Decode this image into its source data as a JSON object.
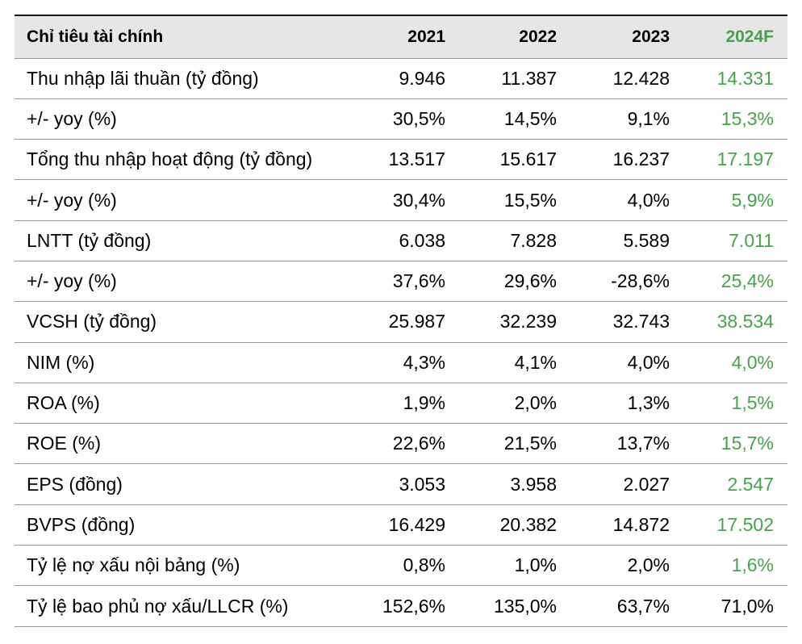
{
  "table": {
    "headers": [
      "Chỉ tiêu tài chính",
      "2021",
      "2022",
      "2023",
      "2024F"
    ],
    "forecast_color": "#47a34a",
    "header_background": "#e6e6e6",
    "rows": [
      {
        "label": "Thu nhập lãi thuần (tỷ đồng)",
        "values": [
          "9.946",
          "11.387",
          "12.428",
          "14.331"
        ]
      },
      {
        "label": "+/- yoy (%)",
        "values": [
          "30,5%",
          "14,5%",
          "9,1%",
          "15,3%"
        ]
      },
      {
        "label": "Tổng thu nhập hoạt động (tỷ đồng)",
        "values": [
          "13.517",
          "15.617",
          "16.237",
          "17.197"
        ]
      },
      {
        "label": "+/- yoy (%)",
        "values": [
          "30,4%",
          "15,5%",
          "4,0%",
          "5,9%"
        ]
      },
      {
        "label": "LNTT (tỷ đồng)",
        "values": [
          "6.038",
          "7.828",
          "5.589",
          "7.011"
        ]
      },
      {
        "label": "+/- yoy (%)",
        "values": [
          "37,6%",
          "29,6%",
          "-28,6%",
          "25,4%"
        ]
      },
      {
        "label": "VCSH (tỷ đồng)",
        "values": [
          "25.987",
          "32.239",
          "32.743",
          "38.534"
        ]
      },
      {
        "label": "NIM (%)",
        "values": [
          "4,3%",
          "4,1%",
          "4,0%",
          "4,0%"
        ]
      },
      {
        "label": "ROA (%)",
        "values": [
          "1,9%",
          "2,0%",
          "1,3%",
          "1,5%"
        ]
      },
      {
        "label": "ROE (%)",
        "values": [
          "22,6%",
          "21,5%",
          "13,7%",
          "15,7%"
        ]
      },
      {
        "label": "EPS (đồng)",
        "values": [
          "3.053",
          "3.958",
          "2.027",
          "2.547"
        ]
      },
      {
        "label": "BVPS (đồng)",
        "values": [
          "16.429",
          "20.382",
          "14.872",
          "17.502"
        ]
      },
      {
        "label": "Tỷ lệ nợ xấu nội bảng (%)",
        "values": [
          "0,8%",
          "1,0%",
          "2,0%",
          "1,6%"
        ]
      },
      {
        "label": "Tỷ lệ bao phủ nợ xấu/LLCR (%)",
        "values": [
          "152,6%",
          "135,0%",
          "63,7%",
          "71,0%"
        ]
      }
    ]
  }
}
